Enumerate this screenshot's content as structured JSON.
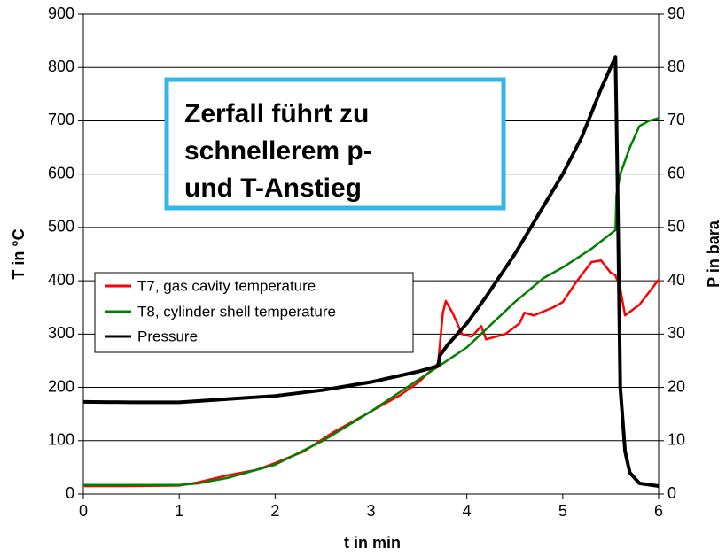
{
  "chart_data": {
    "type": "line",
    "xlabel": "t in min",
    "ylabel": "T in °C",
    "y2label": "P in bara",
    "annotation": [
      "Zerfall führt zu",
      "schnellerem p-",
      "und T-Anstieg"
    ],
    "xlim": [
      0,
      6
    ],
    "xticks": [
      0,
      1,
      2,
      3,
      4,
      5,
      6
    ],
    "ylim": [
      0,
      900
    ],
    "yticks": [
      0,
      100,
      200,
      300,
      400,
      500,
      600,
      700,
      800,
      900
    ],
    "y2lim": [
      0,
      90
    ],
    "y2ticks": [
      0,
      10,
      20,
      30,
      40,
      50,
      60,
      70,
      80,
      90
    ],
    "grid": true,
    "series": [
      {
        "name": "T7, gas cavity temperature",
        "color": "#ff0000",
        "x": [
          0,
          0.5,
          1,
          1.2,
          1.5,
          1.8,
          2,
          2.3,
          2.6,
          3,
          3.3,
          3.5,
          3.7,
          3.75,
          3.78,
          3.85,
          3.95,
          4.05,
          4.15,
          4.2,
          4.4,
          4.55,
          4.6,
          4.7,
          4.9,
          5,
          5.15,
          5.3,
          5.4,
          5.5,
          5.55,
          5.6,
          5.65,
          5.8,
          6
        ],
        "values": [
          15,
          15,
          16,
          22,
          35,
          45,
          58,
          80,
          115,
          155,
          185,
          210,
          245,
          340,
          362,
          340,
          300,
          295,
          315,
          290,
          300,
          320,
          340,
          335,
          350,
          360,
          400,
          435,
          438,
          415,
          410,
          385,
          335,
          355,
          402
        ]
      },
      {
        "name": "T8, cylinder shell temperature",
        "color": "#008000",
        "x": [
          0,
          1,
          1.2,
          1.5,
          2,
          2.5,
          3,
          3.5,
          4,
          4.5,
          4.8,
          5,
          5.3,
          5.55,
          5.56,
          5.6,
          5.7,
          5.8,
          5.9,
          6
        ],
        "values": [
          17,
          17,
          20,
          30,
          55,
          100,
          155,
          215,
          275,
          360,
          405,
          425,
          460,
          495,
          560,
          600,
          650,
          690,
          700,
          705
        ]
      },
      {
        "name": "Pressure",
        "color": "#000000",
        "axis": "y2",
        "x": [
          0,
          0.5,
          1,
          1.5,
          2,
          2.5,
          3,
          3.5,
          3.7,
          3.72,
          3.8,
          4,
          4.2,
          4.5,
          4.8,
          5,
          5.2,
          5.4,
          5.55,
          5.57,
          5.6,
          5.65,
          5.7,
          5.8,
          6
        ],
        "values": [
          17.3,
          17.2,
          17.2,
          17.8,
          18.4,
          19.5,
          21,
          23,
          24,
          26,
          28,
          32,
          37,
          45,
          54,
          60,
          67,
          76,
          82,
          60,
          20,
          8,
          4,
          2,
          1.5
        ]
      }
    ]
  }
}
